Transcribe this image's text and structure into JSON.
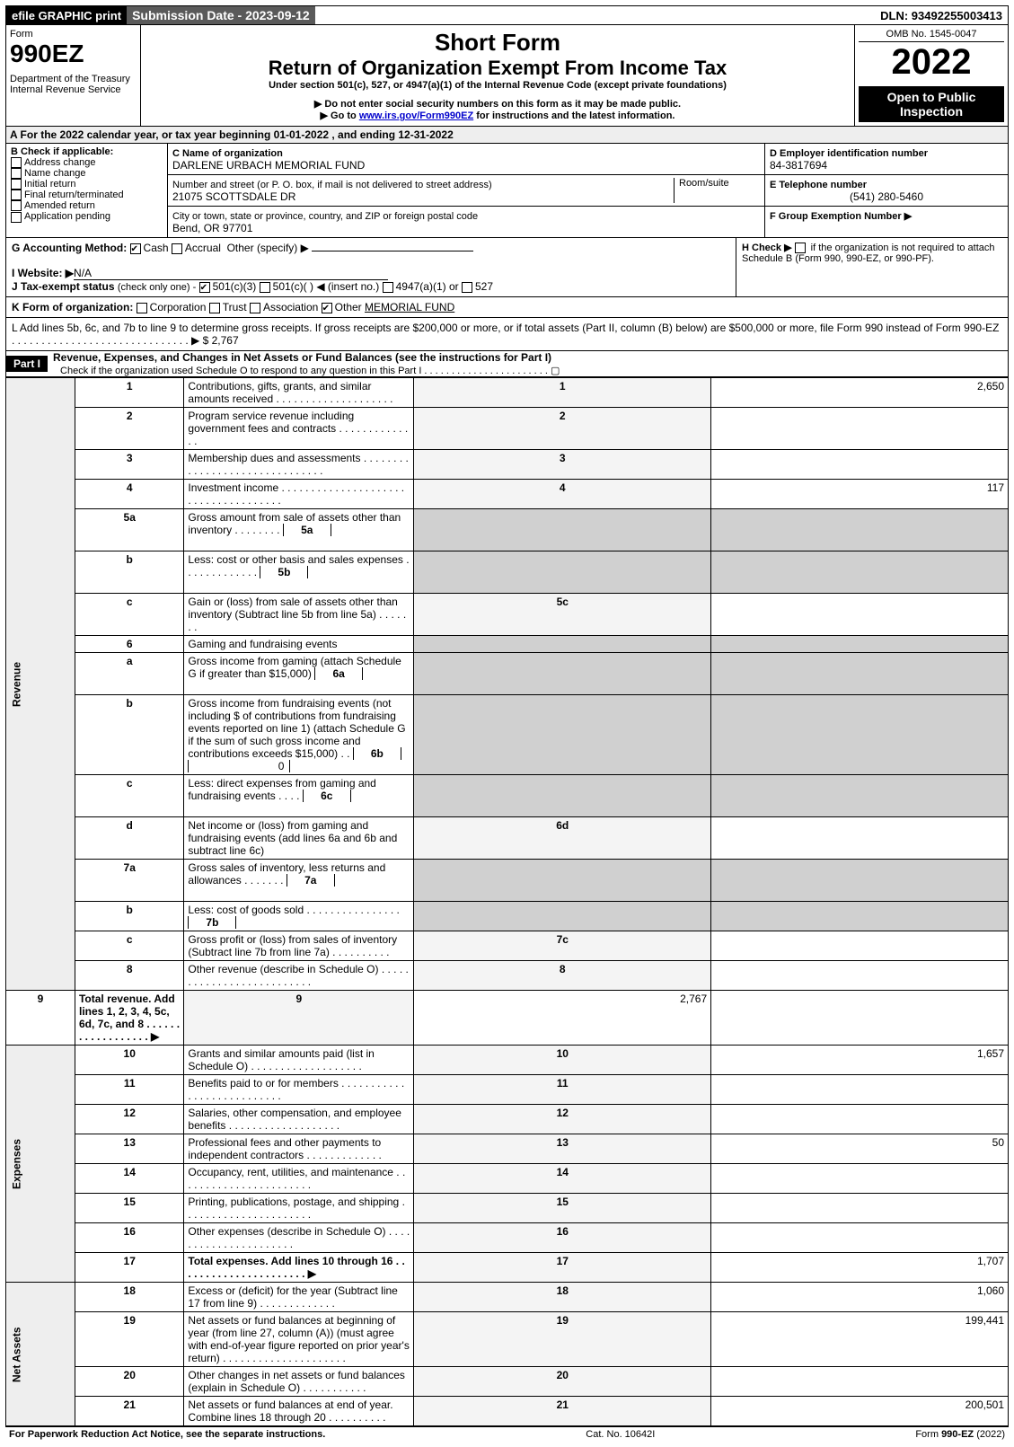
{
  "topbar": {
    "efile": "efile GRAPHIC print",
    "subdate": "Submission Date - 2023-09-12",
    "dln": "DLN: 93492255003413"
  },
  "header": {
    "form_label": "Form",
    "form_number": "990EZ",
    "dept": "Department of the Treasury\nInternal Revenue Service",
    "short_form": "Short Form",
    "title": "Return of Organization Exempt From Income Tax",
    "under": "Under section 501(c), 527, or 4947(a)(1) of the Internal Revenue Code (except private foundations)",
    "warn": "▶ Do not enter social security numbers on this form as it may be made public.",
    "goto_pre": "▶ Go to ",
    "goto_link": "www.irs.gov/Form990EZ",
    "goto_post": " for instructions and the latest information.",
    "omb": "OMB No. 1545-0047",
    "year": "2022",
    "open": "Open to Public Inspection"
  },
  "a_line": "A  For the 2022 calendar year, or tax year beginning 01-01-2022 , and ending 12-31-2022",
  "b": {
    "label": "B  Check if applicable:",
    "opts": [
      "Address change",
      "Name change",
      "Initial return",
      "Final return/terminated",
      "Amended return",
      "Application pending"
    ]
  },
  "c": {
    "name_lbl": "C Name of organization",
    "name": "DARLENE URBACH MEMORIAL FUND",
    "street_lbl": "Number and street (or P. O. box, if mail is not delivered to street address)",
    "street": "21075 SCOTTSDALE DR",
    "room_lbl": "Room/suite",
    "city_lbl": "City or town, state or province, country, and ZIP or foreign postal code",
    "city": "Bend, OR  97701"
  },
  "d": {
    "label": "D Employer identification number",
    "val": "84-3817694"
  },
  "e": {
    "label": "E Telephone number",
    "val": "(541) 280-5460"
  },
  "f": {
    "label": "F Group Exemption Number  ▶",
    "val": ""
  },
  "g": {
    "label": "G Accounting Method:",
    "cash": "Cash",
    "accrual": "Accrual",
    "other": "Other (specify) ▶"
  },
  "h": {
    "label": "H  Check ▶",
    "txt": "if the organization is not required to attach Schedule B (Form 990, 990-EZ, or 990-PF)."
  },
  "i": {
    "label": "I Website: ▶",
    "val": "N/A"
  },
  "j": {
    "label": "J Tax-exempt status",
    "note": "(check only one) -",
    "o1": "501(c)(3)",
    "o2": "501(c)(  ) ◀ (insert no.)",
    "o3": "4947(a)(1) or",
    "o4": "527"
  },
  "k": {
    "label": "K Form of organization:",
    "opts": [
      "Corporation",
      "Trust",
      "Association"
    ],
    "other_lbl": "Other",
    "other": "MEMORIAL FUND"
  },
  "l": {
    "text": "L Add lines 5b, 6c, and 7b to line 9 to determine gross receipts. If gross receipts are $200,000 or more, or if total assets (Part II, column (B) below) are $500,000 or more, file Form 990 instead of Form 990-EZ . . . . . . . . . . . . . . . . . . . . . . . . . . . . . . ▶ $",
    "amt": "2,767"
  },
  "part1": {
    "tag": "Part I",
    "title": "Revenue, Expenses, and Changes in Net Assets or Fund Balances (see the instructions for Part I)",
    "check": "Check if the organization used Schedule O to respond to any question in this Part I . . . . . . . . . . . . . . . . . . . . . . . ▢"
  },
  "sections": {
    "rev": "Revenue",
    "exp": "Expenses",
    "net": "Net Assets"
  },
  "rows": [
    {
      "n": "1",
      "d": "Contributions, gifts, grants, and similar amounts received . . . . . . . . . . . . . . . . . . . .",
      "t": "1",
      "v": "2,650"
    },
    {
      "n": "2",
      "d": "Program service revenue including government fees and contracts . . . . . . . . . . . . . .",
      "t": "2",
      "v": ""
    },
    {
      "n": "3",
      "d": "Membership dues and assessments . . . . . . . . . . . . . . . . . . . . . . . . . . . . . . .",
      "t": "3",
      "v": ""
    },
    {
      "n": "4",
      "d": "Investment income . . . . . . . . . . . . . . . . . . . . . . . . . . . . . . . . . . . . .",
      "t": "4",
      "v": "117"
    },
    {
      "n": "5a",
      "d": "Gross amount from sale of assets other than inventory . . . . . . . .",
      "box": "5a",
      "shade": true
    },
    {
      "n": "b",
      "d": "Less: cost or other basis and sales expenses . . . . . . . . . . . . .",
      "box": "5b",
      "shade": true
    },
    {
      "n": "c",
      "d": "Gain or (loss) from sale of assets other than inventory (Subtract line 5b from line 5a) . . . . . . .",
      "t": "5c",
      "v": ""
    },
    {
      "n": "6",
      "d": "Gaming and fundraising events",
      "noval": true
    },
    {
      "n": "a",
      "d": "Gross income from gaming (attach Schedule G if greater than $15,000)",
      "box": "6a",
      "shade": true
    },
    {
      "n": "b",
      "d": "Gross income from fundraising events (not including $                     of contributions from fundraising events reported on line 1) (attach Schedule G if the sum of such gross income and contributions exceeds $15,000)   . .",
      "box": "6b",
      "boxv": "0",
      "shade": true
    },
    {
      "n": "c",
      "d": "Less: direct expenses from gaming and fundraising events  . . . .",
      "box": "6c",
      "shade": true
    },
    {
      "n": "d",
      "d": "Net income or (loss) from gaming and fundraising events (add lines 6a and 6b and subtract line 6c)",
      "t": "6d",
      "v": ""
    },
    {
      "n": "7a",
      "d": "Gross sales of inventory, less returns and allowances . . . . . . .",
      "box": "7a",
      "shade": true
    },
    {
      "n": "b",
      "d": "Less: cost of goods sold         . . . . . . . . . . . . . . . .",
      "box": "7b",
      "shade": true
    },
    {
      "n": "c",
      "d": "Gross profit or (loss) from sales of inventory (Subtract line 7b from line 7a) . . . . . . . . . .",
      "t": "7c",
      "v": ""
    },
    {
      "n": "8",
      "d": "Other revenue (describe in Schedule O) . . . . . . . . . . . . . . . . . . . . . . . . . .",
      "t": "8",
      "v": ""
    },
    {
      "n": "9",
      "d": "Total revenue. Add lines 1, 2, 3, 4, 5c, 6d, 7c, and 8  . . . . . . . . . . . . . . . . . . ▶",
      "t": "9",
      "v": "2,767",
      "bold": true
    },
    {
      "n": "10",
      "d": "Grants and similar amounts paid (list in Schedule O) . . . . . . . . . . . . . . . . . . .",
      "t": "10",
      "v": "1,657",
      "sec": "exp"
    },
    {
      "n": "11",
      "d": "Benefits paid to or for members    . . . . . . . . . . . . . . . . . . . . . . . . . . .",
      "t": "11",
      "v": ""
    },
    {
      "n": "12",
      "d": "Salaries, other compensation, and employee benefits . . . . . . . . . . . . . . . . . . .",
      "t": "12",
      "v": ""
    },
    {
      "n": "13",
      "d": "Professional fees and other payments to independent contractors . . . . . . . . . . . . .",
      "t": "13",
      "v": "50"
    },
    {
      "n": "14",
      "d": "Occupancy, rent, utilities, and maintenance . . . . . . . . . . . . . . . . . . . . . . .",
      "t": "14",
      "v": ""
    },
    {
      "n": "15",
      "d": "Printing, publications, postage, and shipping . . . . . . . . . . . . . . . . . . . . . .",
      "t": "15",
      "v": ""
    },
    {
      "n": "16",
      "d": "Other expenses (describe in Schedule O)    . . . . . . . . . . . . . . . . . . . . . .",
      "t": "16",
      "v": ""
    },
    {
      "n": "17",
      "d": "Total expenses. Add lines 10 through 16    . . . . . . . . . . . . . . . . . . . . . . ▶",
      "t": "17",
      "v": "1,707",
      "bold": true
    },
    {
      "n": "18",
      "d": "Excess or (deficit) for the year (Subtract line 17 from line 9)      . . . . . . . . . . . . .",
      "t": "18",
      "v": "1,060",
      "sec": "net"
    },
    {
      "n": "19",
      "d": "Net assets or fund balances at beginning of year (from line 27, column (A)) (must agree with end-of-year figure reported on prior year's return) . . . . . . . . . . . . . . . . . . . . .",
      "t": "19",
      "v": "199,441"
    },
    {
      "n": "20",
      "d": "Other changes in net assets or fund balances (explain in Schedule O) . . . . . . . . . . .",
      "t": "20",
      "v": ""
    },
    {
      "n": "21",
      "d": "Net assets or fund balances at end of year. Combine lines 18 through 20 . . . . . . . . . .",
      "t": "21",
      "v": "200,501"
    }
  ],
  "footer": {
    "left": "For Paperwork Reduction Act Notice, see the separate instructions.",
    "mid": "Cat. No. 10642I",
    "right": "Form 990-EZ (2022)"
  }
}
